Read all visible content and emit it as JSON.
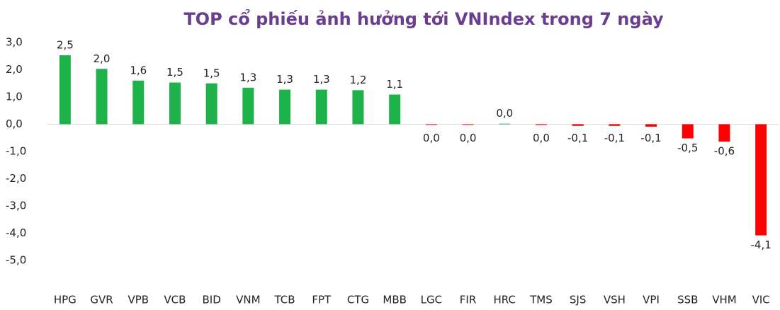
{
  "chart_data": {
    "type": "bar",
    "title": "TOP cổ phiếu ảnh hưởng tới VNIndex trong 7 ngày",
    "categories": [
      "HPG",
      "GVR",
      "VPB",
      "VCB",
      "BID",
      "VNM",
      "TCB",
      "FPT",
      "CTG",
      "MBB",
      "LGC",
      "FIR",
      "HRC",
      "TMS",
      "SJS",
      "VSH",
      "VPI",
      "SSB",
      "VHM",
      "VIC"
    ],
    "values": [
      2.53,
      2.03,
      1.6,
      1.53,
      1.5,
      1.34,
      1.27,
      1.27,
      1.25,
      1.09,
      -0.02,
      -0.01,
      0.02,
      -0.03,
      -0.06,
      -0.06,
      -0.09,
      -0.52,
      -0.64,
      -4.08
    ],
    "value_labels": [
      "2,5",
      "2,0",
      "1,6",
      "1,5",
      "1,5",
      "1,3",
      "1,3",
      "1,3",
      "1,2",
      "1,1",
      "0,0",
      "0,0",
      "0,0",
      "0,0",
      "-0,1",
      "-0,1",
      "-0,1",
      "-0,5",
      "-0,6",
      "-4,1"
    ],
    "positive_color": "#1db34a",
    "negative_color": "#ff0000",
    "ylim": [
      -5,
      3
    ],
    "yticks": [
      {
        "value": 3,
        "label": "3,0"
      },
      {
        "value": 2,
        "label": "2,0"
      },
      {
        "value": 1,
        "label": "1,0"
      },
      {
        "value": 0,
        "label": "0,0"
      },
      {
        "value": -1,
        "label": "-1,0"
      },
      {
        "value": -2,
        "label": "-2,0"
      },
      {
        "value": -3,
        "label": "-3,0"
      },
      {
        "value": -4,
        "label": "-4,0"
      },
      {
        "value": -5,
        "label": "-5,0"
      }
    ]
  }
}
